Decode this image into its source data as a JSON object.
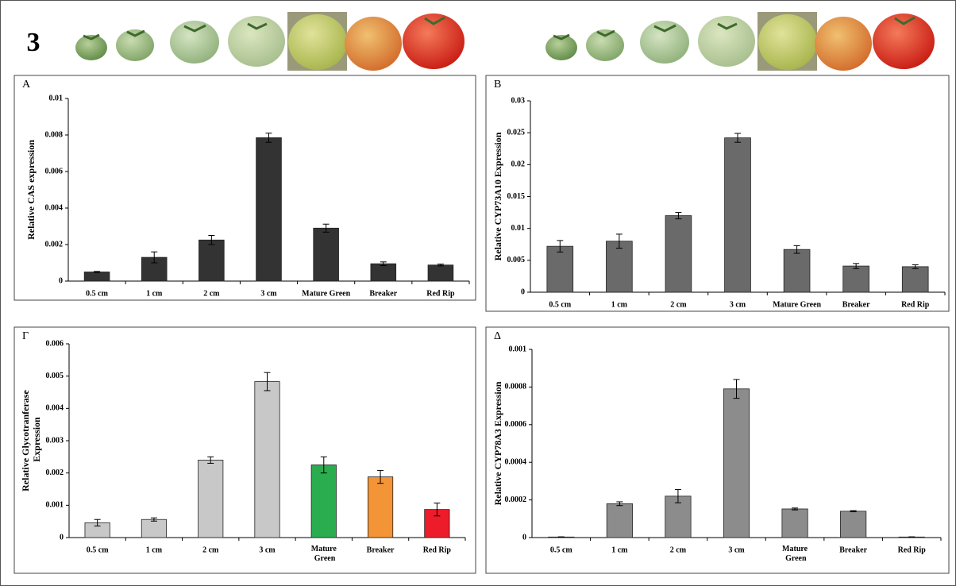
{
  "figure_number": "3",
  "chart_data": [
    {
      "type": "bar",
      "panel": "A",
      "ylabel": "Relative CAS expression",
      "categories": [
        "0.5 cm",
        "1 cm",
        "2 cm",
        "3 cm",
        "Mature Green",
        "Breaker",
        "Red Rip"
      ],
      "values": [
        0.0005,
        0.0013,
        0.00225,
        0.00785,
        0.0029,
        0.00095,
        0.00088
      ],
      "errors": [
        3e-05,
        0.0003,
        0.00025,
        0.00025,
        0.00022,
        0.0001,
        5e-05
      ],
      "color": "#333333",
      "ylim": [
        0,
        0.01
      ],
      "yticks": [
        0,
        0.002,
        0.004,
        0.006,
        0.008,
        0.01
      ]
    },
    {
      "type": "bar",
      "panel": "B",
      "ylabel": "Relative CYP73A10 Expression",
      "categories": [
        "0.5 cm",
        "1 cm",
        "2 cm",
        "3 cm",
        "Mature Green",
        "Breaker",
        "Red Rip"
      ],
      "values": [
        0.0072,
        0.008,
        0.012,
        0.0242,
        0.0067,
        0.0041,
        0.004
      ],
      "errors": [
        0.0009,
        0.0011,
        0.0005,
        0.0007,
        0.0006,
        0.0004,
        0.0003
      ],
      "color": "#6a6a6a",
      "ylim": [
        0,
        0.03
      ],
      "yticks": [
        0,
        0.005,
        0.01,
        0.015,
        0.02,
        0.025,
        0.03
      ]
    },
    {
      "type": "bar",
      "panel": "Γ",
      "ylabel": "Relative Glycotranferase Expression",
      "categories": [
        "0.5 cm",
        "1 cm",
        "2 cm",
        "3 cm",
        "Mature Green",
        "Breaker",
        "Red Rip"
      ],
      "values": [
        0.00046,
        0.00056,
        0.0024,
        0.00483,
        0.00225,
        0.00188,
        0.00087
      ],
      "errors": [
        0.0001,
        5e-05,
        0.0001,
        0.00028,
        0.00025,
        0.0002,
        0.0002
      ],
      "colors": [
        "#c8c8c8",
        "#c8c8c8",
        "#c8c8c8",
        "#c8c8c8",
        "#2aad4f",
        "#f39436",
        "#ed1c2b"
      ],
      "ylim": [
        0,
        0.006
      ],
      "yticks": [
        0,
        0.001,
        0.002,
        0.003,
        0.004,
        0.005,
        0.006
      ]
    },
    {
      "type": "bar",
      "panel": "Δ",
      "ylabel": "Relative CYP78A3 Expression",
      "categories": [
        "0.5 cm",
        "1 cm",
        "2 cm",
        "3 cm",
        "Mature Green",
        "Breaker",
        "Red Rip"
      ],
      "values": [
        3e-06,
        0.00018,
        0.00022,
        0.00079,
        0.000152,
        0.00014,
        3e-06
      ],
      "errors": [
        1e-06,
        1e-05,
        3.5e-05,
        5e-05,
        5e-06,
        3e-06,
        1e-06
      ],
      "color": "#8c8c8c",
      "ylim": [
        0,
        0.001
      ],
      "yticks": [
        0,
        0.0002,
        0.0004,
        0.0006,
        0.0008,
        0.001
      ]
    }
  ]
}
